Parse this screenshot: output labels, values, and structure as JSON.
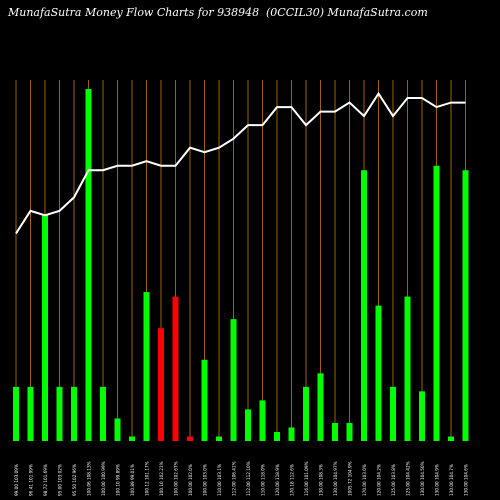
{
  "header": {
    "title_left": "MunafaSutra  Money Flow  Charts for 938948",
    "title_right": "(0CCIL30) MunafaSutra.com"
  },
  "colors": {
    "background": "#000000",
    "grid": "#a0600a",
    "up": "#00ff00",
    "down": "#ff0000",
    "line": "#ffffff"
  },
  "chart_data": {
    "type": "bar",
    "title": "MunafaSutra  Money Flow  Charts for 938948",
    "categories": [
      "99.00 103.09%",
      "96.41 101.99%",
      "98.72 101.69%",
      "95.00 103.02%",
      "95.50 102.96%",
      "100.06 108.13%",
      "100.00 100.99%",
      "100.10 99.89%",
      "100.89 99.01%",
      "100.12 101.17%",
      "100.10 102.21%",
      "100.00 102.67%",
      "100.00 102.0%",
      "100.00 103.0%",
      "110.00 103.1%",
      "112.00 106.41%",
      "112.00 112.10%",
      "110.00 118.0%",
      "120.00 118.9%",
      "170.18 112.6%",
      "116.00 101.09%",
      "130.00 108.3%",
      "130.00 104.97%",
      "1005.72 104.9%",
      "170.00 103.0%",
      "120.00 104.2%",
      "125.00 103.8%",
      "125.00 104.42%",
      "130.00 104.50%",
      "130.00 104.9%",
      "130.00 104.7%",
      "130.00 104.6%"
    ],
    "values": [
      12,
      12,
      50,
      12,
      12,
      78,
      12,
      5,
      1,
      33,
      25,
      32,
      1,
      18,
      1,
      27,
      7,
      9,
      2,
      3,
      12,
      15,
      4,
      4,
      60,
      30,
      12,
      32,
      11,
      61,
      1,
      60
    ],
    "bar_colors": [
      "green",
      "green",
      "green",
      "green",
      "green",
      "green",
      "green",
      "green",
      "green",
      "green",
      "red",
      "red",
      "red",
      "green",
      "green",
      "green",
      "green",
      "green",
      "green",
      "green",
      "green",
      "green",
      "green",
      "green",
      "green",
      "green",
      "green",
      "green",
      "green",
      "green",
      "green",
      "green"
    ],
    "line_values": [
      46,
      51,
      50,
      51,
      54,
      60,
      60,
      61,
      61,
      62,
      61,
      61,
      65,
      64,
      65,
      67,
      70,
      70,
      74,
      74,
      70,
      73,
      73,
      75,
      72,
      77,
      72,
      76,
      76,
      74,
      75,
      75
    ],
    "ylim": [
      0,
      80
    ],
    "grid": true
  }
}
